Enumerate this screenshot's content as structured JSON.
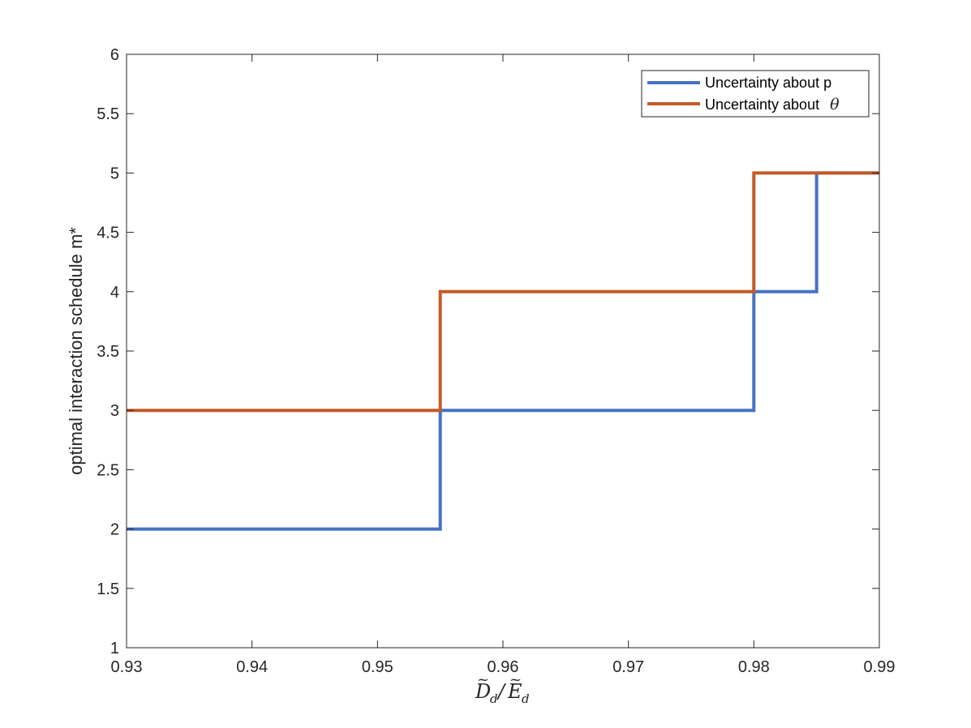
{
  "chart_data": {
    "type": "line",
    "step": true,
    "xlabel": "D̃_d / Ẽ_d",
    "ylabel": "optimal interaction schedule m*",
    "xlim": [
      0.93,
      0.99
    ],
    "ylim": [
      1,
      6
    ],
    "xticks": [
      0.93,
      0.94,
      0.95,
      0.96,
      0.97,
      0.98,
      0.99
    ],
    "xtick_labels": [
      "0.93",
      "0.94",
      "0.95",
      "0.96",
      "0.97",
      "0.98",
      "0.99"
    ],
    "yticks": [
      1,
      1.5,
      2,
      2.5,
      3,
      3.5,
      4,
      4.5,
      5,
      5.5,
      6
    ],
    "ytick_labels": [
      "1",
      "1.5",
      "2",
      "2.5",
      "3",
      "3.5",
      "4",
      "4.5",
      "5",
      "5.5",
      "6"
    ],
    "grid": false,
    "legend_position": "top-right",
    "series": [
      {
        "name": "Uncertainty about p",
        "color": "#4472c4",
        "x": [
          0.93,
          0.955,
          0.955,
          0.98,
          0.98,
          0.985,
          0.985,
          0.99
        ],
        "y": [
          2,
          2,
          3,
          3,
          4,
          4,
          5,
          5
        ]
      },
      {
        "name": "Uncertainty about θ",
        "color": "#c55a28",
        "x": [
          0.93,
          0.955,
          0.955,
          0.98,
          0.98,
          0.99
        ],
        "y": [
          3,
          3,
          4,
          4,
          5,
          5
        ]
      }
    ]
  },
  "legend": {
    "entry_0": "Uncertainty about p",
    "entry_1_prefix": "Uncertainty about",
    "entry_1_symbol": "θ"
  },
  "axes": {
    "ylabel": "optimal interaction schedule m*",
    "xlabel_num_base": "D",
    "xlabel_den_base": "E",
    "xlabel_sub": "d"
  }
}
